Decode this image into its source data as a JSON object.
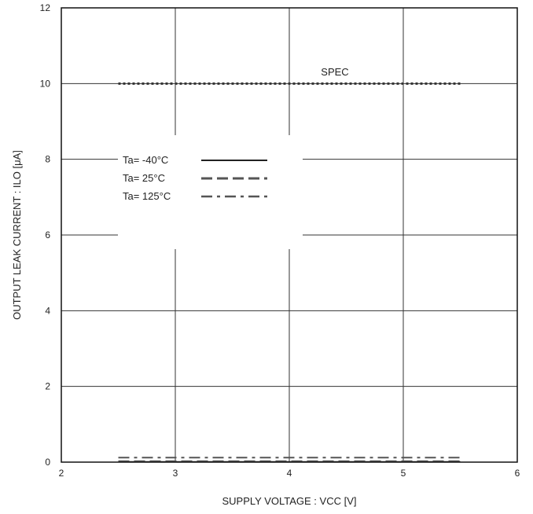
{
  "chart_data": {
    "type": "line",
    "xlabel": "SUPPLY VOLTAGE : VCC [V]",
    "ylabel": "OUTPUT LEAK CURRENT : ILO [μA]",
    "xlim": [
      2,
      6
    ],
    "ylim": [
      0,
      12
    ],
    "x_ticks": [
      "2",
      "3",
      "4",
      "5",
      "6"
    ],
    "y_ticks": [
      "0",
      "2",
      "4",
      "6",
      "8",
      "10",
      "12"
    ],
    "grid": true,
    "annotations": [
      {
        "text": "SPEC",
        "x": 4.4,
        "y": 10.3
      }
    ],
    "spec_line": {
      "x": [
        2.5,
        5.5
      ],
      "y": [
        10,
        10
      ],
      "style": "dotted"
    },
    "legend": {
      "placement": "upper-left"
    },
    "series": [
      {
        "name": "Ta= -40°C",
        "style": "solid",
        "color": "#222222",
        "x": [
          2.5,
          3.0,
          3.5,
          4.0,
          4.5,
          5.0,
          5.5
        ],
        "y": [
          0.01,
          0.01,
          0.01,
          0.01,
          0.01,
          0.01,
          0.01
        ]
      },
      {
        "name": "Ta=  25°C",
        "style": "dashed",
        "color": "#555555",
        "x": [
          2.5,
          3.0,
          3.5,
          4.0,
          4.5,
          5.0,
          5.5
        ],
        "y": [
          0.02,
          0.02,
          0.02,
          0.02,
          0.02,
          0.02,
          0.02
        ]
      },
      {
        "name": "Ta= 125°C",
        "style": "dashdot",
        "color": "#555555",
        "x": [
          2.5,
          3.0,
          3.5,
          4.0,
          4.5,
          5.0,
          5.5
        ],
        "y": [
          0.12,
          0.12,
          0.12,
          0.12,
          0.12,
          0.12,
          0.12
        ]
      }
    ]
  }
}
